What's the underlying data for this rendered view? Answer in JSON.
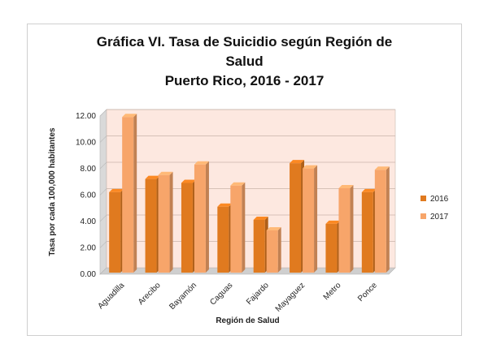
{
  "chart_data": {
    "type": "bar",
    "title_line1": "Gráfica VI. Tasa de Suicidio según Región de",
    "title_line2": "Salud",
    "title_line3": "Puerto Rico, 2016 - 2017",
    "xlabel": "Región de Salud",
    "ylabel": "Tasa por cada 100,000 habitantes",
    "categories": [
      "Aguadilla",
      "Arecibo",
      "Bayamón",
      "Caguas",
      "Fajardo",
      "Mayaguez",
      "Metro",
      "Ponce"
    ],
    "series": [
      {
        "name": "2016",
        "values": [
          6.1,
          7.1,
          6.8,
          5.0,
          4.0,
          8.3,
          3.7,
          6.1
        ],
        "color": "#e07a1f"
      },
      {
        "name": "2017",
        "values": [
          11.8,
          7.4,
          8.2,
          6.6,
          3.2,
          7.9,
          6.4,
          7.8
        ],
        "color": "#f7a56a"
      }
    ],
    "ylim": [
      0,
      12
    ],
    "yticks": [
      "0.00",
      "2.00",
      "4.00",
      "6.00",
      "8.00",
      "10.00",
      "12.00"
    ],
    "grid": true,
    "legend_position": "right",
    "plot_background": "#fde8e0"
  }
}
